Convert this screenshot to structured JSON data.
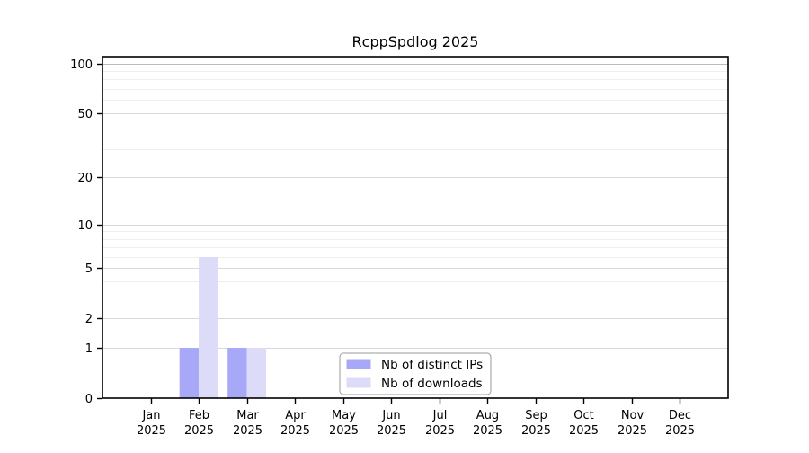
{
  "chart_data": {
    "type": "bar",
    "title": "RcppSpdlog 2025",
    "categories": [
      "Jan",
      "Feb",
      "Mar",
      "Apr",
      "May",
      "Jun",
      "Jul",
      "Aug",
      "Sep",
      "Oct",
      "Nov",
      "Dec"
    ],
    "year_label": "2025",
    "series": [
      {
        "name": "Nb of distinct IPs",
        "color": "#a8a8f8",
        "values": [
          0,
          1,
          1,
          0,
          0,
          0,
          0,
          0,
          0,
          0,
          0,
          0
        ]
      },
      {
        "name": "Nb of downloads",
        "color": "#dcdcf9",
        "values": [
          0,
          6,
          1,
          0,
          0,
          0,
          0,
          0,
          0,
          0,
          0,
          0
        ]
      }
    ],
    "yscale": "log1p",
    "yticks": [
      0,
      1,
      2,
      5,
      10,
      20,
      50,
      100
    ],
    "minor_yticks": [
      3,
      4,
      6,
      7,
      8,
      9,
      30,
      40,
      60,
      70,
      80,
      90
    ],
    "ylim": [
      0,
      110
    ],
    "xlabel": "",
    "ylabel": "",
    "grid": true,
    "legend_position": "inside-bottom-center",
    "colors": {
      "background": "#ffffff",
      "axis": "#000000",
      "major_grid": "#d9d9d9",
      "top_grid": "#bbbbbb",
      "minor_grid": "#efefef",
      "legend_border": "#999999",
      "legend_fill": "#ffffff"
    }
  }
}
